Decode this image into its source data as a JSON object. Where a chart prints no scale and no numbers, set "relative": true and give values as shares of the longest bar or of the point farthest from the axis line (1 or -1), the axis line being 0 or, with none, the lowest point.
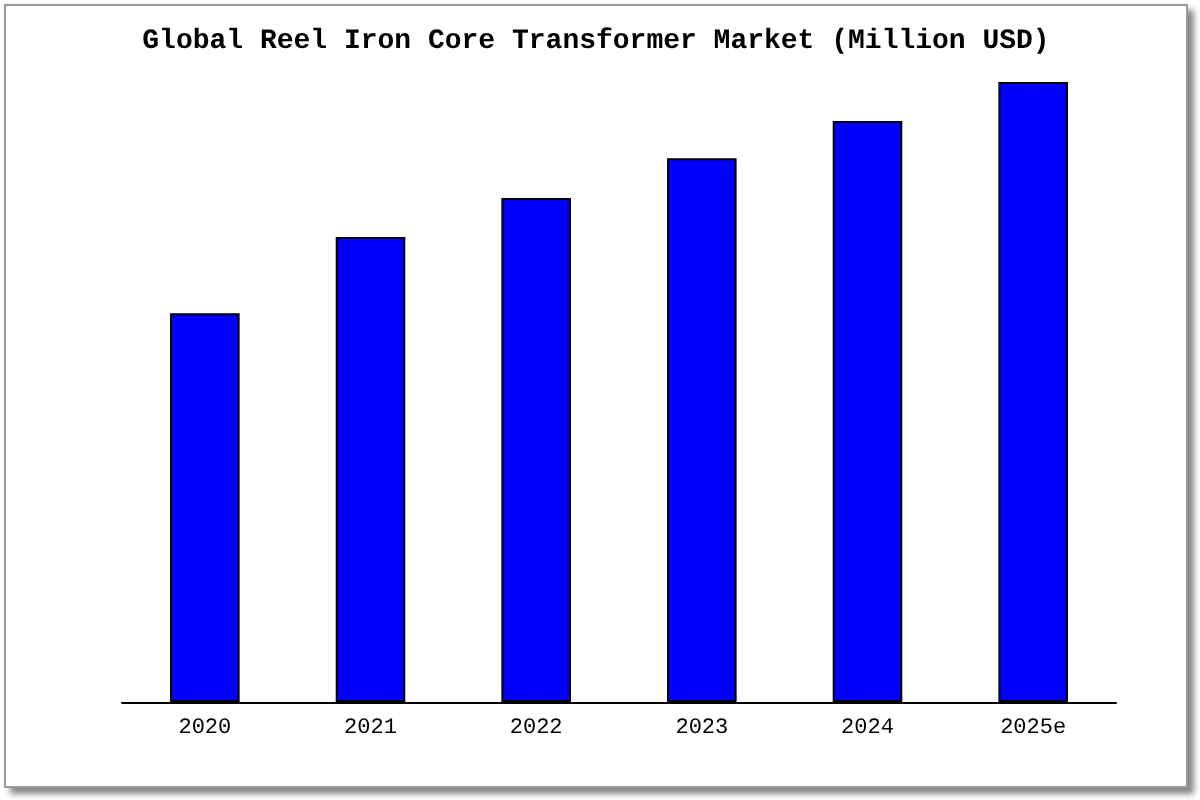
{
  "chart_data": {
    "type": "bar",
    "title": "Global Reel Iron Core Transformer Market (Million USD)",
    "categories": [
      "2020",
      "2021",
      "2022",
      "2023",
      "2024",
      "2025e"
    ],
    "values": [
      0.627,
      0.75,
      0.813,
      0.877,
      0.937,
      1
    ],
    "color": "#0000ff",
    "relative": true
  }
}
